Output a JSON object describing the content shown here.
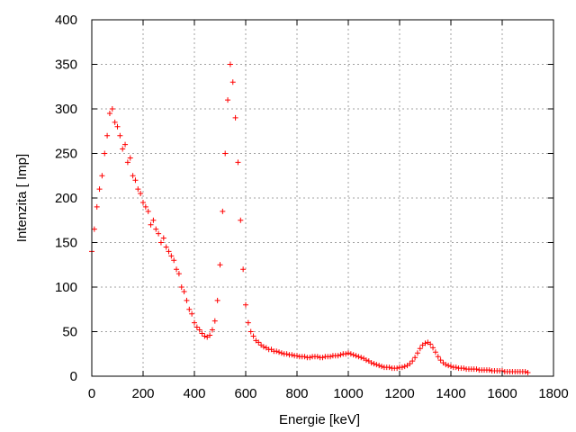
{
  "chart_data": {
    "type": "scatter",
    "title": "",
    "xlabel": "Energie [keV]",
    "ylabel": "Intenzita [ Imp]",
    "xlim": [
      0,
      1800
    ],
    "ylim": [
      0,
      400
    ],
    "xticks": [
      "0",
      "200",
      "400",
      "600",
      "800",
      "1000",
      "1200",
      "1400",
      "1600",
      "1800"
    ],
    "yticks": [
      "0",
      "50",
      "100",
      "150",
      "200",
      "250",
      "300",
      "350",
      "400"
    ],
    "grid": true,
    "legend": "none",
    "marker": "+",
    "color": "#ff0000",
    "x_start": 0,
    "x_step": 10,
    "values": [
      140,
      165,
      190,
      210,
      225,
      250,
      270,
      295,
      300,
      285,
      280,
      270,
      255,
      260,
      240,
      245,
      225,
      220,
      210,
      205,
      195,
      190,
      185,
      170,
      175,
      165,
      160,
      150,
      155,
      145,
      140,
      135,
      130,
      120,
      115,
      100,
      95,
      85,
      75,
      70,
      60,
      55,
      52,
      48,
      45,
      44,
      46,
      52,
      62,
      85,
      125,
      185,
      250,
      310,
      350,
      330,
      290,
      240,
      175,
      120,
      80,
      60,
      50,
      45,
      40,
      38,
      35,
      33,
      32,
      30,
      30,
      28,
      28,
      27,
      26,
      25,
      25,
      24,
      24,
      23,
      23,
      22,
      22,
      22,
      21,
      21,
      22,
      22,
      22,
      21,
      21,
      22,
      22,
      22,
      23,
      23,
      23,
      24,
      25,
      25,
      26,
      25,
      24,
      23,
      22,
      21,
      20,
      18,
      17,
      15,
      14,
      13,
      12,
      11,
      10,
      10,
      10,
      9,
      9,
      9,
      10,
      10,
      11,
      12,
      14,
      17,
      21,
      26,
      31,
      35,
      37,
      38,
      36,
      32,
      27,
      22,
      18,
      15,
      13,
      12,
      11,
      10,
      10,
      9,
      9,
      9,
      8,
      8,
      8,
      8,
      8,
      7,
      7,
      7,
      7,
      7,
      6,
      6,
      6,
      6,
      6,
      5,
      5,
      5,
      5,
      5,
      5,
      5,
      5,
      5,
      4
    ]
  }
}
